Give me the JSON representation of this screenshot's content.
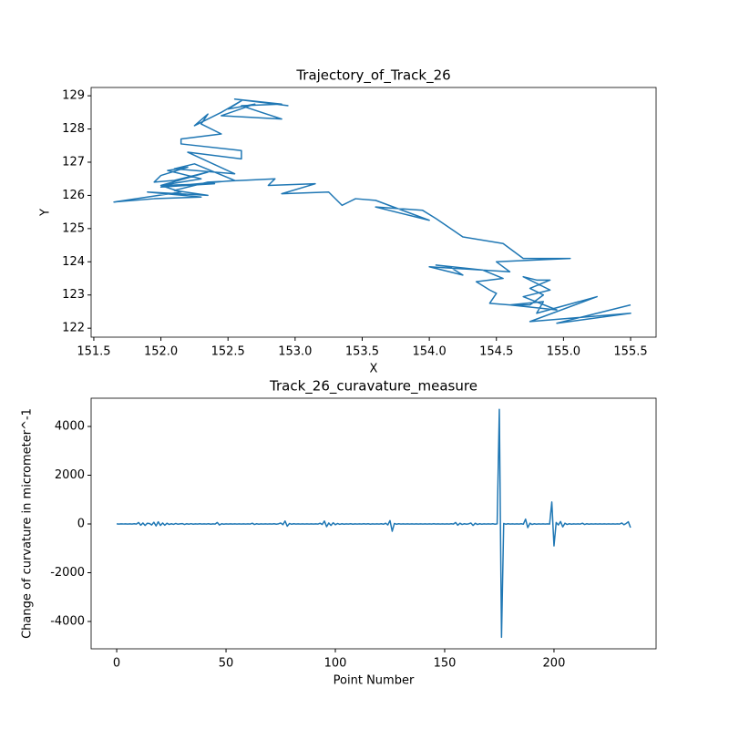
{
  "chart_data": [
    {
      "type": "line",
      "title": "Trajectory_of_Track_26",
      "x_label": "X",
      "y_label": "Y",
      "color": "#1f77b4",
      "x": [
        155.5,
        155.2,
        154.95,
        155.5,
        154.75,
        155.25,
        154.8,
        154.85,
        154.6,
        154.95,
        154.7,
        154.9,
        154.7,
        154.8,
        154.9,
        154.75,
        154.85,
        154.75,
        154.6,
        154.45,
        154.5,
        154.45,
        154.35,
        154.55,
        154.4,
        154.05,
        154.15,
        154.25,
        154.0,
        154.6,
        154.5,
        155.05,
        154.7,
        154.55,
        154.25,
        154.05,
        153.95,
        153.6,
        154.0,
        153.6,
        153.45,
        153.35,
        153.25,
        152.9,
        153.15,
        152.8,
        152.85,
        152.6,
        152.35,
        152.1,
        152.35,
        151.9,
        152.3,
        151.95,
        151.65,
        152.15,
        152.0,
        152.3,
        152.05,
        152.2,
        152.0,
        151.95,
        152.1,
        152.35,
        152.0,
        152.4,
        152.0,
        152.55,
        152.25,
        152.1,
        152.55,
        152.2,
        152.6,
        152.6,
        152.15,
        152.15,
        152.45,
        152.3,
        152.35,
        152.25,
        152.45,
        152.6,
        152.5,
        152.7,
        152.45,
        152.9,
        152.6,
        152.9,
        152.55,
        152.95
      ],
      "values": [
        122.7,
        122.4,
        122.15,
        122.45,
        122.2,
        122.95,
        122.45,
        122.8,
        122.7,
        122.55,
        122.95,
        123.15,
        123.55,
        123.45,
        123.45,
        123.2,
        123.0,
        122.7,
        122.7,
        122.75,
        123.05,
        123.15,
        123.4,
        123.5,
        123.75,
        123.9,
        123.85,
        123.6,
        123.85,
        123.7,
        124.0,
        124.1,
        124.1,
        124.55,
        124.75,
        125.3,
        125.55,
        125.65,
        125.25,
        125.85,
        125.9,
        125.7,
        126.1,
        126.05,
        126.35,
        126.3,
        126.5,
        126.45,
        126.4,
        126.15,
        126.0,
        126.1,
        125.95,
        125.9,
        125.8,
        126.1,
        126.3,
        126.5,
        126.75,
        126.85,
        126.6,
        126.4,
        126.45,
        126.7,
        126.3,
        126.35,
        126.25,
        126.45,
        126.95,
        126.8,
        126.65,
        127.3,
        127.1,
        127.35,
        127.55,
        127.7,
        127.85,
        128.15,
        128.45,
        128.1,
        128.5,
        128.85,
        128.6,
        128.75,
        128.4,
        128.3,
        128.7,
        128.75,
        128.9,
        128.7
      ],
      "xlim": [
        151.48,
        155.69
      ],
      "ylim": [
        121.73,
        129.25
      ],
      "xticks": [
        151.5,
        {
          "value": 152,
          "label": "152.0"
        },
        152.5,
        {
          "value": 153,
          "label": "153.0"
        },
        153.5,
        {
          "value": 154,
          "label": "154.0"
        },
        154.5,
        {
          "value": 155,
          "label": "155.0"
        },
        155.5
      ],
      "yticks": [
        122,
        123,
        124,
        125,
        126,
        127,
        128,
        129
      ]
    },
    {
      "type": "line",
      "title": "Track_26_curavature_measure",
      "x_label": "Point Number",
      "y_label": "Change of curvature in micrometer^-1",
      "color": "#1f77b4",
      "x": [
        0,
        1,
        2,
        3,
        4,
        5,
        6,
        7,
        8,
        9,
        10,
        11,
        12,
        13,
        14,
        15,
        16,
        17,
        18,
        19,
        20,
        21,
        22,
        23,
        24,
        25,
        26,
        27,
        28,
        29,
        30,
        31,
        32,
        33,
        34,
        35,
        36,
        37,
        38,
        39,
        40,
        41,
        42,
        43,
        44,
        45,
        46,
        47,
        48,
        49,
        50,
        51,
        52,
        53,
        54,
        55,
        56,
        57,
        58,
        59,
        60,
        61,
        62,
        63,
        64,
        65,
        66,
        67,
        68,
        69,
        70,
        71,
        72,
        73,
        74,
        75,
        76,
        77,
        78,
        79,
        80,
        81,
        82,
        83,
        84,
        85,
        86,
        87,
        88,
        89,
        90,
        91,
        92,
        93,
        94,
        95,
        96,
        97,
        98,
        99,
        100,
        101,
        102,
        103,
        104,
        105,
        106,
        107,
        108,
        109,
        110,
        111,
        112,
        113,
        114,
        115,
        116,
        117,
        118,
        119,
        120,
        121,
        122,
        123,
        124,
        125,
        126,
        127,
        128,
        129,
        130,
        131,
        132,
        133,
        134,
        135,
        136,
        137,
        138,
        139,
        140,
        141,
        142,
        143,
        144,
        145,
        146,
        147,
        148,
        149,
        150,
        151,
        152,
        153,
        154,
        155,
        156,
        157,
        158,
        159,
        160,
        161,
        162,
        163,
        164,
        165,
        166,
        167,
        168,
        169,
        170,
        171,
        172,
        173,
        174,
        175,
        176,
        177,
        178,
        179,
        180,
        181,
        182,
        183,
        184,
        185,
        186,
        187,
        188,
        189,
        190,
        191,
        192,
        193,
        194,
        195,
        196,
        197,
        198,
        199,
        200,
        201,
        202,
        203,
        204,
        205,
        206,
        207,
        208,
        209,
        210,
        211,
        212,
        213,
        214,
        215,
        216,
        217,
        218,
        219,
        220,
        221,
        222,
        223,
        224,
        225,
        226,
        227,
        228,
        229,
        230,
        231,
        232,
        233,
        234,
        235
      ],
      "values": [
        5,
        -3,
        4,
        -2,
        6,
        -5,
        3,
        -4,
        8,
        -6,
        60,
        -50,
        40,
        -60,
        30,
        20,
        -40,
        70,
        -80,
        90,
        -60,
        40,
        -50,
        30,
        -20,
        10,
        -15,
        20,
        -10,
        5,
        15,
        -20,
        10,
        -8,
        12,
        -10,
        6,
        -4,
        8,
        -5,
        4,
        -6,
        8,
        -10,
        6,
        -5,
        60,
        -40,
        10,
        -8,
        5,
        -4,
        6,
        -3,
        4,
        -5,
        3,
        -4,
        6,
        -5,
        4,
        -6,
        30,
        -20,
        10,
        -8,
        6,
        -4,
        5,
        -3,
        4,
        -5,
        10,
        -8,
        6,
        40,
        -30,
        120,
        -90,
        20,
        -10,
        8,
        -6,
        5,
        -4,
        6,
        -5,
        4,
        -3,
        5,
        -4,
        6,
        -5,
        30,
        -20,
        120,
        -110,
        40,
        -60,
        50,
        -30,
        20,
        -15,
        10,
        -8,
        6,
        -5,
        8,
        -10,
        6,
        -4,
        5,
        -6,
        8,
        -5,
        10,
        -8,
        6,
        -4,
        5,
        -6,
        8,
        -10,
        30,
        -40,
        140,
        -300,
        20,
        -10,
        8,
        -6,
        5,
        -4,
        6,
        -5,
        4,
        -3,
        5,
        -4,
        6,
        -5,
        4,
        -6,
        5,
        -4,
        8,
        -6,
        5,
        -4,
        6,
        -5,
        4,
        -6,
        8,
        -5,
        60,
        -50,
        30,
        -20,
        10,
        -8,
        6,
        40,
        -60,
        30,
        -20,
        10,
        -8,
        6,
        -4,
        5,
        -6,
        8,
        -10,
        6,
        4700,
        -4650,
        20,
        -10,
        8,
        -6,
        5,
        -4,
        6,
        -5,
        10,
        -8,
        200,
        -150,
        30,
        -20,
        10,
        -8,
        6,
        -5,
        4,
        -6,
        5,
        -4,
        900,
        -900,
        60,
        -40,
        100,
        -120,
        30,
        -20,
        10,
        -8,
        6,
        -5,
        4,
        -6,
        30,
        -20,
        10,
        -8,
        6,
        -5,
        4,
        -6,
        5,
        -4,
        6,
        -5,
        4,
        -3,
        5,
        -4,
        6,
        -5,
        40,
        -30,
        20,
        90,
        -150
      ],
      "xlim": [
        -11.7,
        246.7
      ],
      "ylim": [
        -5121,
        5159
      ],
      "xticks": [
        0,
        50,
        100,
        150,
        200
      ],
      "yticks": [
        -4000,
        -2000,
        0,
        2000,
        4000
      ]
    }
  ]
}
